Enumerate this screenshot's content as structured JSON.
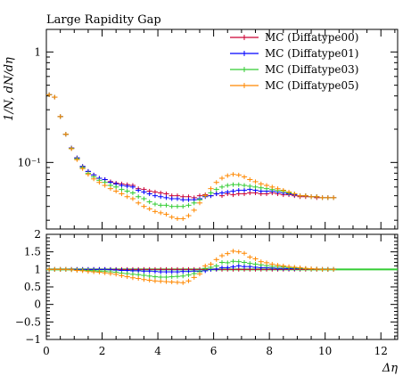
{
  "chart_data": [
    {
      "panel": "main",
      "type": "scatter",
      "title": "Large Rapidity Gap",
      "xlabel": "Δη",
      "ylabel": "1/N, dN/dη",
      "yscale": "log",
      "xlim": [
        0,
        12.6
      ],
      "ylim": [
        0.025,
        1.6
      ],
      "yticks": [
        0.1,
        1
      ],
      "ytick_labels": [
        "10⁻¹",
        "1"
      ],
      "legend_position": "top-right",
      "x": [
        0.1,
        0.3,
        0.5,
        0.7,
        0.9,
        1.1,
        1.3,
        1.5,
        1.7,
        1.9,
        2.1,
        2.3,
        2.5,
        2.7,
        2.9,
        3.1,
        3.3,
        3.5,
        3.7,
        3.9,
        4.1,
        4.3,
        4.5,
        4.7,
        4.9,
        5.1,
        5.3,
        5.5,
        5.7,
        5.9,
        6.1,
        6.3,
        6.5,
        6.7,
        6.9,
        7.1,
        7.3,
        7.5,
        7.7,
        7.9,
        8.1,
        8.3,
        8.5,
        8.7,
        8.9,
        9.1,
        9.3,
        9.5,
        9.7,
        9.9,
        10.1,
        10.3
      ],
      "series": [
        {
          "name": "MC (Diffatype00)",
          "color": "#cc0033",
          "values": [
            0.41,
            0.39,
            0.26,
            0.18,
            0.135,
            0.11,
            0.092,
            0.083,
            0.077,
            0.072,
            0.07,
            0.067,
            0.065,
            0.064,
            0.063,
            0.062,
            0.058,
            0.057,
            0.055,
            0.054,
            0.053,
            0.052,
            0.05,
            0.05,
            0.049,
            0.049,
            0.048,
            0.05,
            0.051,
            0.05,
            0.052,
            0.05,
            0.052,
            0.051,
            0.052,
            0.052,
            0.053,
            0.053,
            0.052,
            0.052,
            0.053,
            0.052,
            0.051,
            0.051,
            0.05,
            0.049,
            0.049,
            0.049,
            0.048,
            0.048,
            0.048,
            0.048
          ]
        },
        {
          "name": "MC (Diffatype01)",
          "color": "#0000ff",
          "values": [
            0.41,
            0.39,
            0.26,
            0.18,
            0.135,
            0.11,
            0.092,
            0.083,
            0.077,
            0.072,
            0.07,
            0.066,
            0.064,
            0.062,
            0.061,
            0.06,
            0.056,
            0.054,
            0.052,
            0.05,
            0.049,
            0.048,
            0.047,
            0.047,
            0.046,
            0.046,
            0.046,
            0.047,
            0.049,
            0.05,
            0.052,
            0.053,
            0.054,
            0.055,
            0.056,
            0.056,
            0.057,
            0.056,
            0.055,
            0.055,
            0.055,
            0.054,
            0.053,
            0.052,
            0.051,
            0.05,
            0.05,
            0.049,
            0.049,
            0.048,
            0.048,
            0.048
          ]
        },
        {
          "name": "MC (Diffatype03)",
          "color": "#33cc33",
          "values": [
            0.41,
            0.39,
            0.26,
            0.18,
            0.134,
            0.108,
            0.09,
            0.08,
            0.074,
            0.069,
            0.066,
            0.062,
            0.06,
            0.057,
            0.055,
            0.053,
            0.049,
            0.047,
            0.044,
            0.042,
            0.041,
            0.041,
            0.04,
            0.04,
            0.04,
            0.041,
            0.043,
            0.046,
            0.05,
            0.053,
            0.057,
            0.06,
            0.062,
            0.063,
            0.063,
            0.062,
            0.061,
            0.06,
            0.059,
            0.058,
            0.057,
            0.056,
            0.055,
            0.053,
            0.052,
            0.05,
            0.05,
            0.049,
            0.049,
            0.048,
            0.048,
            0.048
          ]
        },
        {
          "name": "MC (Diffatype05)",
          "color": "#ff8800",
          "values": [
            0.41,
            0.39,
            0.26,
            0.18,
            0.133,
            0.106,
            0.088,
            0.078,
            0.071,
            0.066,
            0.062,
            0.058,
            0.055,
            0.052,
            0.049,
            0.047,
            0.043,
            0.04,
            0.038,
            0.036,
            0.035,
            0.034,
            0.032,
            0.031,
            0.031,
            0.033,
            0.037,
            0.043,
            0.05,
            0.058,
            0.066,
            0.072,
            0.076,
            0.078,
            0.077,
            0.074,
            0.07,
            0.067,
            0.064,
            0.062,
            0.06,
            0.058,
            0.056,
            0.054,
            0.052,
            0.05,
            0.05,
            0.049,
            0.049,
            0.048,
            0.048,
            0.048
          ]
        }
      ]
    },
    {
      "panel": "ratio",
      "type": "scatter",
      "xlabel": "Δη",
      "xlim": [
        0,
        12.6
      ],
      "ylim": [
        -1,
        2
      ],
      "yticks": [
        -1,
        -0.5,
        0,
        0.5,
        1,
        1.5,
        2
      ],
      "ytick_labels": [
        "−1",
        "−0.5",
        "0",
        "0.5",
        "1",
        "1.5",
        "2"
      ],
      "xticks": [
        0,
        2,
        4,
        6,
        8,
        10,
        12
      ],
      "xtick_labels": [
        "0",
        "2",
        "4",
        "6",
        "8",
        "10",
        "12"
      ],
      "x": [
        0.1,
        0.3,
        0.5,
        0.7,
        0.9,
        1.1,
        1.3,
        1.5,
        1.7,
        1.9,
        2.1,
        2.3,
        2.5,
        2.7,
        2.9,
        3.1,
        3.3,
        3.5,
        3.7,
        3.9,
        4.1,
        4.3,
        4.5,
        4.7,
        4.9,
        5.1,
        5.3,
        5.5,
        5.7,
        5.9,
        6.1,
        6.3,
        6.5,
        6.7,
        6.9,
        7.1,
        7.3,
        7.5,
        7.7,
        7.9,
        8.1,
        8.3,
        8.5,
        8.7,
        8.9,
        9.1,
        9.3,
        9.5,
        9.7,
        9.9,
        10.1,
        10.3
      ],
      "reference_band": {
        "color": "#33cc33",
        "xmin": 0,
        "xmax": 12.6,
        "y": 1
      },
      "series": [
        {
          "name": "MC (Diffatype00)",
          "color": "#cc0033",
          "values": [
            1,
            1,
            1,
            1,
            1,
            1,
            1,
            1,
            1,
            1,
            1,
            1,
            1,
            1,
            1,
            1,
            1,
            1,
            1,
            1,
            1,
            1,
            1,
            1,
            1,
            1,
            1,
            1,
            1,
            1,
            1,
            1,
            1,
            1,
            1,
            1,
            1,
            1,
            1,
            1,
            1,
            1,
            1,
            1,
            1,
            1,
            1,
            1,
            1,
            1,
            1,
            1
          ]
        },
        {
          "name": "MC (Diffatype01)",
          "color": "#0000ff",
          "values": [
            1,
            1,
            1,
            1,
            1,
            1,
            1,
            1,
            1,
            1,
            1,
            0.99,
            0.98,
            0.97,
            0.97,
            0.96,
            0.96,
            0.95,
            0.95,
            0.94,
            0.93,
            0.93,
            0.93,
            0.93,
            0.94,
            0.94,
            0.95,
            0.95,
            0.96,
            1,
            1.01,
            1.05,
            1.05,
            1.07,
            1.1,
            1.08,
            1.08,
            1.06,
            1.05,
            1.05,
            1.04,
            1.03,
            1.03,
            1.02,
            1.02,
            1.02,
            1.02,
            1.01,
            1.01,
            1,
            1,
            1
          ]
        },
        {
          "name": "MC (Diffatype03)",
          "color": "#33cc33",
          "values": [
            1,
            1,
            1,
            1,
            0.99,
            0.98,
            0.98,
            0.97,
            0.96,
            0.95,
            0.94,
            0.93,
            0.92,
            0.89,
            0.88,
            0.86,
            0.85,
            0.83,
            0.81,
            0.79,
            0.78,
            0.78,
            0.79,
            0.8,
            0.81,
            0.84,
            0.88,
            0.93,
            1.03,
            1.06,
            1.1,
            1.2,
            1.19,
            1.23,
            1.22,
            1.2,
            1.17,
            1.15,
            1.13,
            1.11,
            1.09,
            1.08,
            1.07,
            1.05,
            1.04,
            1.03,
            1.02,
            1.01,
            1.01,
            1,
            1,
            1
          ]
        },
        {
          "name": "MC (Diffatype05)",
          "color": "#ff8800",
          "values": [
            1,
            1,
            1,
            1,
            0.99,
            0.97,
            0.96,
            0.94,
            0.93,
            0.92,
            0.9,
            0.88,
            0.86,
            0.82,
            0.79,
            0.76,
            0.74,
            0.71,
            0.69,
            0.67,
            0.66,
            0.65,
            0.64,
            0.63,
            0.62,
            0.67,
            0.77,
            0.87,
            1.1,
            1.15,
            1.28,
            1.39,
            1.45,
            1.52,
            1.5,
            1.46,
            1.35,
            1.3,
            1.22,
            1.19,
            1.15,
            1.12,
            1.1,
            1.08,
            1.06,
            1.05,
            1.03,
            1.02,
            1.01,
            1,
            1,
            1
          ]
        }
      ]
    }
  ]
}
